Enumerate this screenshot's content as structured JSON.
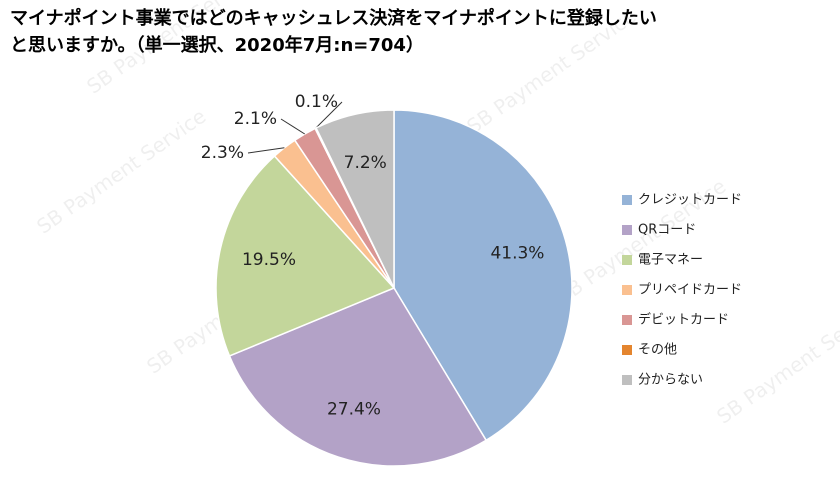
{
  "chart_data": {
    "type": "pie",
    "title": [
      "マイナポイント事業ではどのキャッシュレス決済をマイナポイントに登録したい",
      "と思いますか。（単一選択、2020年7月:n=704）"
    ],
    "watermark": "SB Payment Service",
    "categories": [
      "クレジットカード",
      "QRコード",
      "電子マネー",
      "プリペイドカード",
      "デビットカード",
      "その他",
      "分からない"
    ],
    "values": [
      41.3,
      27.4,
      19.5,
      2.3,
      2.1,
      0.1,
      7.2
    ],
    "value_labels": [
      "41.3%",
      "27.4%",
      "19.5%",
      "2.3%",
      "2.1%",
      "0.1%",
      "7.2%"
    ],
    "colors": [
      "#95b3d7",
      "#b3a2c7",
      "#c3d69b",
      "#fac090",
      "#d99694",
      "#e4852e",
      "#bfbfbf"
    ],
    "legend": "right"
  }
}
